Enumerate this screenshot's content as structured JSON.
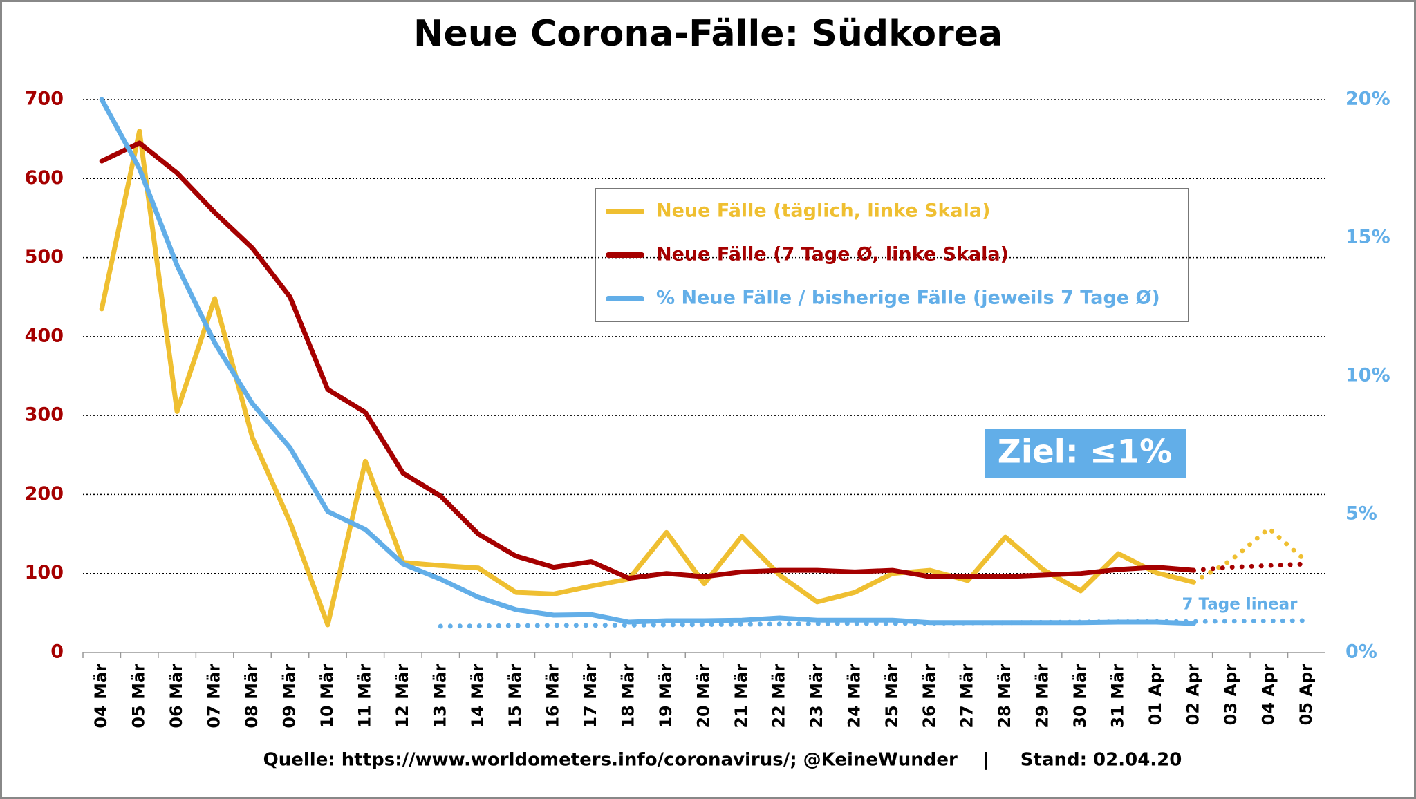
{
  "chart_data": {
    "type": "line",
    "title": "Neue Corona-Fälle: Südkorea",
    "categories": [
      "04 Mär",
      "05 Mär",
      "06 Mär",
      "07 Mär",
      "08 Mär",
      "09 Mär",
      "10 Mär",
      "11 Mär",
      "12 Mär",
      "13 Mär",
      "14 Mär",
      "15 Mär",
      "16 Mär",
      "17 Mär",
      "18 Mär",
      "19 Mär",
      "20 Mär",
      "21 Mär",
      "22 Mär",
      "23 Mär",
      "24 Mär",
      "25 Mär",
      "26 Mär",
      "27 Mär",
      "28 Mär",
      "29 Mär",
      "30 Mär",
      "31 Mär",
      "01 Apr",
      "02 Apr",
      "03 Apr",
      "04 Apr",
      "05 Apr"
    ],
    "ylim": [
      0,
      700
    ],
    "yticks": [
      0,
      100,
      200,
      300,
      400,
      500,
      600,
      700
    ],
    "y2lim": [
      0,
      20
    ],
    "y2ticks": [
      {
        "value": 0,
        "label": "0%"
      },
      {
        "value": 5,
        "label": "5%"
      },
      {
        "value": 10,
        "label": "10%"
      },
      {
        "value": 15,
        "label": "15%"
      },
      {
        "value": 20,
        "label": "20%"
      }
    ],
    "grid": true,
    "series": [
      {
        "name": "Neue Fälle (täglich, linke Skala)",
        "color": "#efbf31",
        "values": [
          435,
          660,
          305,
          448,
          272,
          165,
          35,
          242,
          114,
          110,
          107,
          76,
          74,
          84,
          93,
          152,
          87,
          147,
          98,
          64,
          76,
          100,
          104,
          91,
          146,
          105,
          78,
          125,
          101,
          89,
          null,
          null,
          null
        ],
        "projection": [
          null,
          null,
          null,
          null,
          null,
          null,
          null,
          null,
          null,
          null,
          null,
          null,
          null,
          null,
          null,
          null,
          null,
          null,
          null,
          null,
          null,
          null,
          null,
          null,
          null,
          null,
          null,
          null,
          null,
          89,
          117,
          157,
          115
        ]
      },
      {
        "name": "Neue Fälle (7 Tage Ø, linke Skala)",
        "color": "#a50000",
        "values": [
          622,
          645,
          607,
          557,
          512,
          450,
          333,
          304,
          227,
          198,
          150,
          122,
          108,
          115,
          94,
          100,
          96,
          102,
          104,
          104,
          102,
          104,
          96,
          96,
          96,
          98,
          100,
          105,
          108,
          104,
          null,
          null,
          null
        ],
        "projection": [
          null,
          null,
          null,
          null,
          null,
          null,
          null,
          null,
          null,
          null,
          null,
          null,
          null,
          null,
          null,
          null,
          null,
          null,
          null,
          null,
          null,
          null,
          null,
          null,
          null,
          null,
          null,
          null,
          null,
          104,
          108,
          110,
          112
        ]
      },
      {
        "name": "% Neue Fälle / bisherige Fälle (jeweils 7 Tage Ø)",
        "color": "#62aee8",
        "axis": "y2",
        "values": [
          20,
          17.5,
          14.0,
          11.2,
          9.0,
          7.4,
          5.1,
          4.45,
          3.2,
          2.65,
          2.0,
          1.55,
          1.35,
          1.37,
          1.1,
          1.15,
          1.15,
          1.17,
          1.25,
          1.17,
          1.17,
          1.17,
          1.08,
          1.08,
          1.08,
          1.08,
          1.08,
          1.1,
          1.1,
          1.05,
          null,
          null,
          null
        ],
        "projection": [
          null,
          null,
          null,
          null,
          null,
          null,
          null,
          null,
          null,
          0.95,
          0.96,
          0.97,
          0.98,
          0.98,
          0.99,
          1.0,
          1.01,
          1.02,
          1.03,
          1.04,
          1.05,
          1.05,
          1.06,
          1.07,
          1.08,
          1.09,
          1.1,
          1.11,
          1.12,
          1.12,
          1.13,
          1.14,
          1.15
        ]
      }
    ],
    "annotations": [
      "Ziel: ≤1%",
      "7 Tage linear"
    ],
    "source": "Quelle: https://www.worldometers.info/coronavirus/; @KeineWunder    |     Stand: 02.04.20"
  }
}
